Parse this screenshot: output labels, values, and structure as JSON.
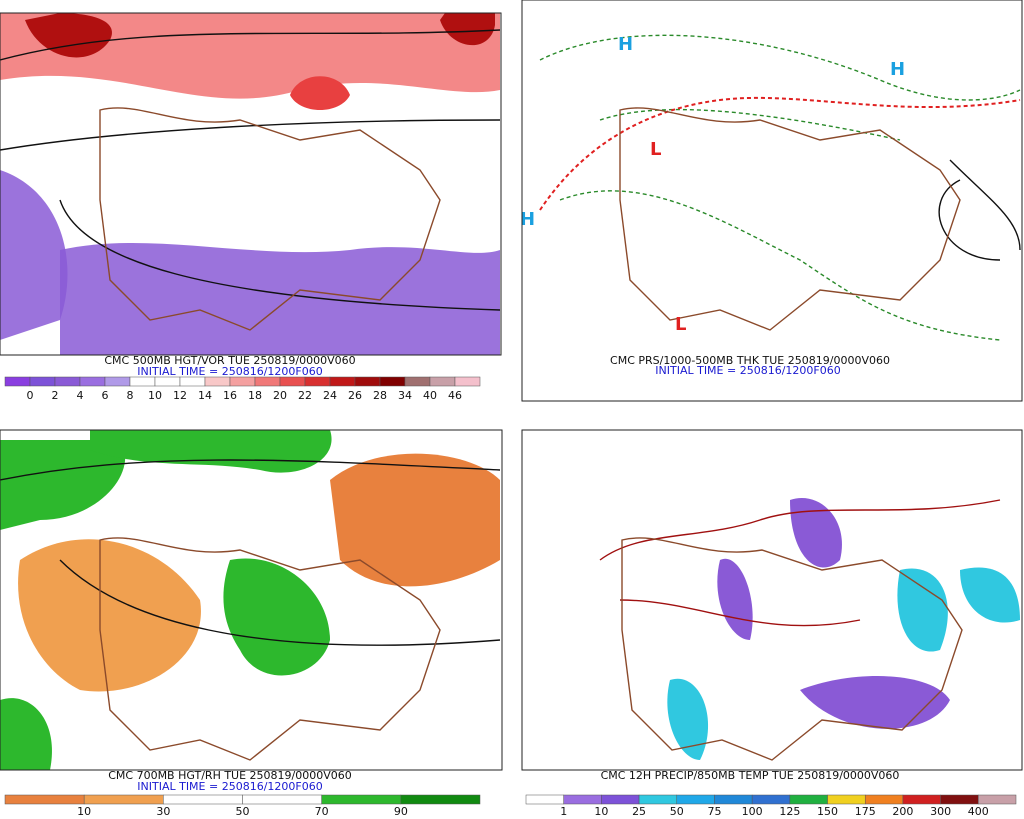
{
  "panels": [
    {
      "title": "CMC 500MB HGT/VOR TUE 250819/0000V060",
      "initial_time": "INITIAL TIME = 250816/1200F060",
      "colorbar": {
        "labels": [
          0,
          2,
          4,
          6,
          8,
          10,
          12,
          14,
          16,
          18,
          20,
          22,
          24,
          26,
          28,
          34,
          40,
          46
        ],
        "colors": [
          "#8a3ee0",
          "#7d52d8",
          "#8a5ad6",
          "#9a6ee0",
          "#b09ae8",
          "#ffffff",
          "#ffffff",
          "#ffffff",
          "#f8c8c8",
          "#f4a0a0",
          "#f07878",
          "#e85050",
          "#d83030",
          "#c01818",
          "#a00c0c",
          "#800000",
          "#a07070",
          "#c8a0a8",
          "#f4c0cc"
        ]
      }
    },
    {
      "title": "CMC PRS/1000-500MB THK TUE 250819/0000V060",
      "initial_time": "INITIAL TIME = 250816/1200F060"
    },
    {
      "title": "CMC 700MB HGT/RH TUE 250819/0000V060",
      "initial_time": "INITIAL TIME = 250816/1200F060",
      "colorbar": {
        "labels": [
          10,
          30,
          50,
          70,
          90
        ],
        "colors": [
          "#e8813e",
          "#f0a050",
          "#ffffff",
          "#ffffff",
          "#2db82d",
          "#118a11"
        ]
      }
    },
    {
      "title": "CMC 12H PRECIP/850MB TEMP TUE 250819/0000V060",
      "colorbar": {
        "labels": [
          1,
          10,
          25,
          50,
          75,
          100,
          125,
          150,
          175,
          200,
          300,
          400
        ],
        "colors": [
          "#ffffff",
          "#9a6ee0",
          "#7d52d8",
          "#30c8e0",
          "#20a8e8",
          "#2088d8",
          "#3070d0",
          "#20b040",
          "#f0d020",
          "#f08020",
          "#d02020",
          "#801010",
          "#c8a0a8"
        ]
      }
    }
  ]
}
